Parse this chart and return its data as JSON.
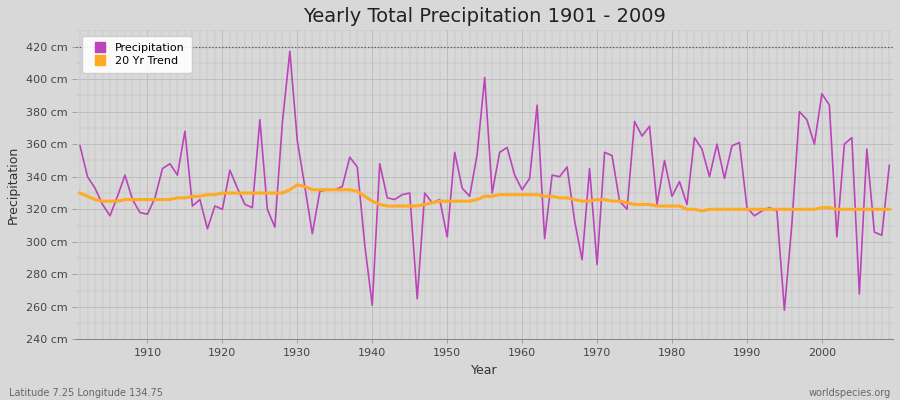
{
  "title": "Yearly Total Precipitation 1901 - 2009",
  "xlabel": "Year",
  "ylabel": "Precipitation",
  "subtitle": "Latitude 7.25 Longitude 134.75",
  "watermark": "worldspecies.org",
  "years": [
    1901,
    1902,
    1903,
    1904,
    1905,
    1906,
    1907,
    1908,
    1909,
    1910,
    1911,
    1912,
    1913,
    1914,
    1915,
    1916,
    1917,
    1918,
    1919,
    1920,
    1921,
    1922,
    1923,
    1924,
    1925,
    1926,
    1927,
    1928,
    1929,
    1930,
    1931,
    1932,
    1933,
    1934,
    1935,
    1936,
    1937,
    1938,
    1939,
    1940,
    1941,
    1942,
    1943,
    1944,
    1945,
    1946,
    1947,
    1948,
    1949,
    1950,
    1951,
    1952,
    1953,
    1954,
    1955,
    1956,
    1957,
    1958,
    1959,
    1960,
    1961,
    1962,
    1963,
    1964,
    1965,
    1966,
    1967,
    1968,
    1969,
    1970,
    1971,
    1972,
    1973,
    1974,
    1975,
    1976,
    1977,
    1978,
    1979,
    1980,
    1981,
    1982,
    1983,
    1984,
    1985,
    1986,
    1987,
    1988,
    1989,
    1990,
    1991,
    1992,
    1993,
    1994,
    1995,
    1996,
    1997,
    1998,
    1999,
    2000,
    2001,
    2002,
    2003,
    2004,
    2005,
    2006,
    2007,
    2008,
    2009
  ],
  "precipitation": [
    359,
    340,
    333,
    323,
    316,
    328,
    341,
    326,
    318,
    317,
    327,
    345,
    348,
    341,
    368,
    322,
    326,
    308,
    322,
    320,
    344,
    333,
    323,
    321,
    375,
    320,
    309,
    373,
    417,
    362,
    334,
    305,
    331,
    332,
    332,
    334,
    352,
    346,
    298,
    261,
    348,
    327,
    326,
    329,
    330,
    265,
    330,
    324,
    326,
    303,
    355,
    333,
    328,
    354,
    401,
    330,
    355,
    358,
    341,
    332,
    339,
    384,
    302,
    341,
    340,
    346,
    313,
    289,
    345,
    286,
    355,
    353,
    325,
    320,
    374,
    365,
    371,
    323,
    350,
    328,
    337,
    323,
    364,
    357,
    340,
    360,
    339,
    359,
    361,
    321,
    316,
    319,
    321,
    319,
    258,
    311,
    380,
    375,
    360,
    391,
    384,
    303,
    360,
    364,
    268,
    357,
    306,
    304,
    347
  ],
  "trend": [
    330,
    328,
    326,
    325,
    325,
    325,
    326,
    326,
    326,
    326,
    326,
    326,
    326,
    327,
    327,
    328,
    328,
    329,
    329,
    330,
    330,
    330,
    330,
    330,
    330,
    330,
    330,
    330,
    332,
    335,
    334,
    332,
    332,
    332,
    332,
    332,
    332,
    331,
    328,
    325,
    323,
    322,
    322,
    322,
    322,
    322,
    323,
    324,
    325,
    325,
    325,
    325,
    325,
    326,
    328,
    328,
    329,
    329,
    329,
    329,
    329,
    329,
    328,
    328,
    327,
    327,
    326,
    325,
    325,
    326,
    326,
    325,
    325,
    324,
    323,
    323,
    323,
    322,
    322,
    322,
    322,
    320,
    320,
    319,
    320,
    320,
    320,
    320,
    320,
    320,
    320,
    320,
    320,
    320,
    320,
    320,
    320,
    320,
    320,
    321,
    321,
    320,
    320,
    320,
    320,
    320,
    320,
    320,
    320
  ],
  "precip_color": "#bb44bb",
  "trend_color": "#ffaa22",
  "bg_color": "#d8d8d8",
  "plot_bg_color": "#d8d8d8",
  "grid_color": "#c0c0c0",
  "dotted_line_y": 420,
  "dotted_line_color": "#555555",
  "ylim_min": 240,
  "ylim_max": 430,
  "yticks": [
    240,
    260,
    280,
    300,
    320,
    340,
    360,
    380,
    400,
    420
  ],
  "xticks": [
    1910,
    1920,
    1930,
    1940,
    1950,
    1960,
    1970,
    1980,
    1990,
    2000
  ],
  "title_fontsize": 14,
  "tick_fontsize": 8,
  "label_fontsize": 9,
  "legend_fontsize": 8
}
